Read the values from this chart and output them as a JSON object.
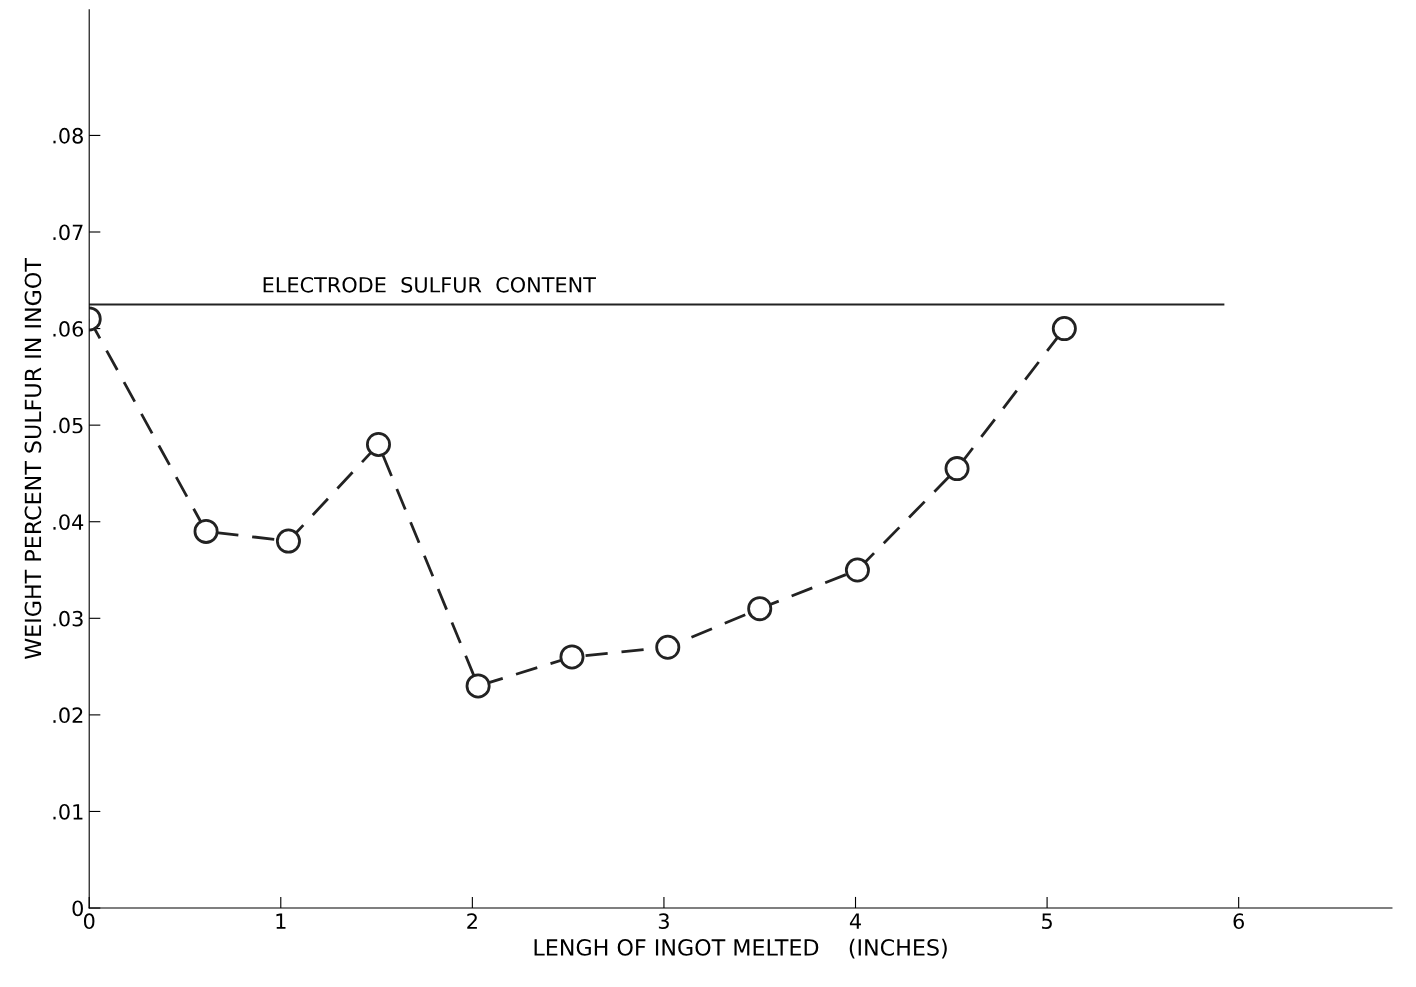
{
  "chart_data": {
    "type": "line",
    "xlabel": "LENGH OF INGOT MELTED    (INCHES)",
    "ylabel": "WEIGHT PERCENT SULFUR IN INGOT",
    "x": [
      0,
      0.61,
      1.04,
      1.51,
      2.03,
      2.52,
      3.02,
      3.5,
      4.01,
      4.53,
      5.09
    ],
    "series": [
      {
        "color": "#222222",
        "values": [
          0.061,
          0.039,
          0.038,
          0.048,
          0.023,
          0.026,
          0.027,
          0.031,
          0.035,
          0.0455,
          0.06
        ]
      }
    ],
    "marker": "circle",
    "line_style": "dashed",
    "grid": false,
    "xlim": [
      0,
      6.8
    ],
    "xticks": [
      0,
      1,
      2,
      3,
      4,
      5,
      6
    ],
    "ylim": [
      0,
      0.093
    ],
    "yticks": [
      0,
      {
        "value": 0.01,
        "label": ".01"
      },
      {
        "value": 0.02,
        "label": ".02"
      },
      {
        "value": 0.03,
        "label": ".03"
      },
      {
        "value": 0.04,
        "label": ".04"
      },
      {
        "value": 0.05,
        "label": ".05"
      },
      {
        "value": 0.06,
        "label": ".06"
      },
      {
        "value": 0.07,
        "label": ".07"
      },
      {
        "value": 0.08,
        "label": ".08"
      }
    ],
    "ref_lines": [
      {
        "axis": "y",
        "value": 0.0625,
        "label": "ELECTRODE  SULFUR  CONTENT",
        "color": "#222222",
        "line_style": "solid"
      }
    ]
  }
}
